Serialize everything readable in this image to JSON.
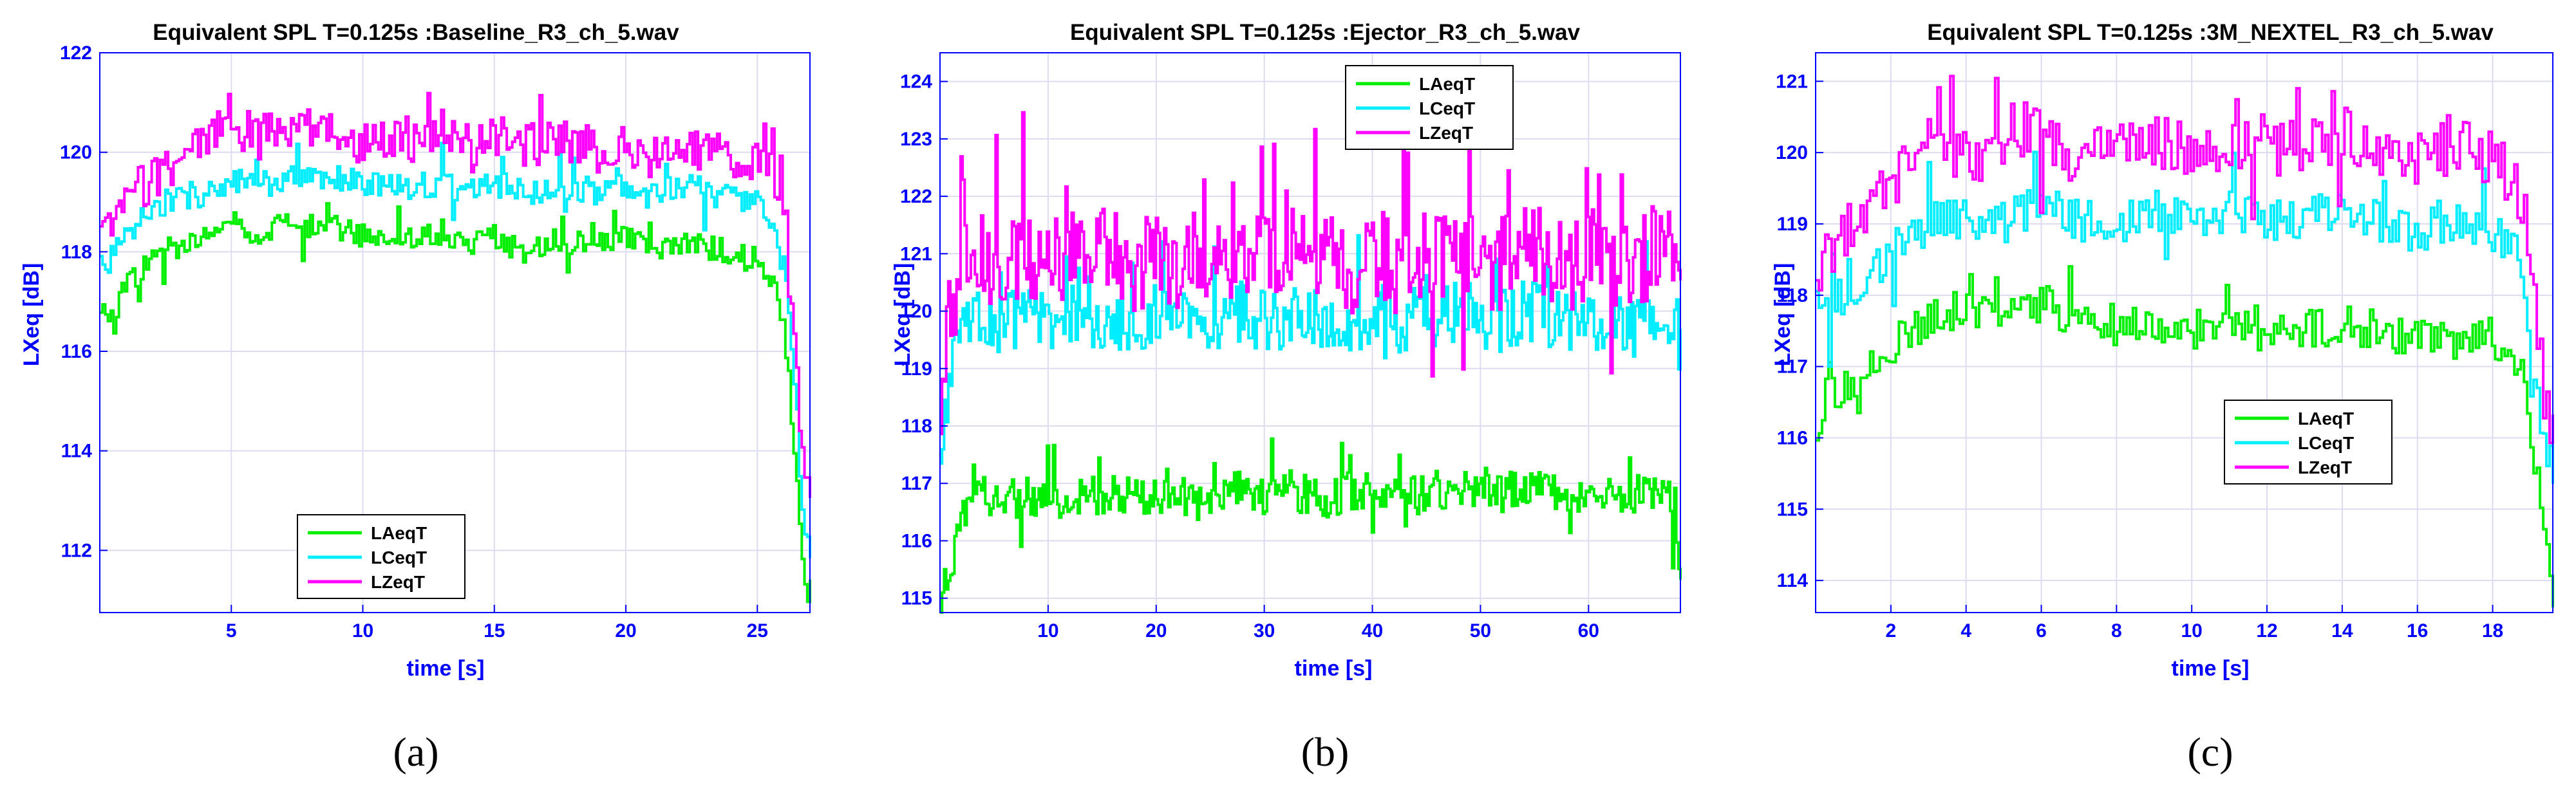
{
  "chart_data": [
    {
      "type": "line",
      "panel": "a",
      "caption": "(a)",
      "title": "Equivalent SPL T=0.125s :Baseline_R3_ch_5.wav",
      "xlabel": "time [s]",
      "ylabel": "LXeq [dB]",
      "xlim": [
        0,
        27
      ],
      "ylim": [
        110.75,
        122
      ],
      "xticks": [
        5,
        10,
        15,
        20,
        25
      ],
      "yticks": [
        112,
        114,
        116,
        118,
        120,
        122
      ],
      "grid": true,
      "legend_position": "bottom-center",
      "series": [
        {
          "name": "LAeqT",
          "color": "#00ee00",
          "x": [
            0,
            0.5,
            1,
            1.5,
            2,
            2.5,
            3,
            4,
            5,
            6,
            7,
            8,
            9,
            10,
            11,
            12,
            13,
            14,
            15,
            16,
            17,
            18,
            19,
            20,
            21,
            22,
            23,
            24,
            25,
            25.5,
            26,
            26.3,
            26.6,
            26.8,
            27
          ],
          "y": [
            116.7,
            116.8,
            117.3,
            117.6,
            117.9,
            118.1,
            118.0,
            118.3,
            118.5,
            118.4,
            118.6,
            118.4,
            118.5,
            118.3,
            118.4,
            118.2,
            118.4,
            118.1,
            118.3,
            118.0,
            118.2,
            118.2,
            118.1,
            118.3,
            118.0,
            118.2,
            118.1,
            118.0,
            117.8,
            117.5,
            116.5,
            114.5,
            112.5,
            111.5,
            110.8
          ]
        },
        {
          "name": "LCeqT",
          "color": "#00eeff",
          "x": [
            0,
            0.5,
            1,
            1.5,
            2,
            2.5,
            3,
            4,
            5,
            6,
            7,
            8,
            9,
            10,
            11,
            12,
            13,
            14,
            15,
            16,
            17,
            18,
            19,
            20,
            21,
            22,
            23,
            24,
            25,
            25.5,
            26,
            26.3,
            26.6,
            26.8,
            27
          ],
          "y": [
            117.8,
            117.9,
            118.3,
            118.6,
            118.8,
            119.0,
            119.1,
            119.2,
            119.4,
            119.3,
            119.5,
            119.4,
            119.5,
            119.3,
            119.4,
            119.3,
            119.4,
            119.2,
            119.4,
            119.2,
            119.3,
            119.3,
            119.2,
            119.3,
            119.1,
            119.3,
            119.2,
            119.1,
            119.0,
            118.6,
            117.8,
            116.2,
            113.5,
            112.3,
            111.8
          ]
        },
        {
          "name": "LZeqT",
          "color": "#ff00ff",
          "x": [
            0,
            0.5,
            1,
            1.5,
            2,
            2.5,
            3,
            4,
            5,
            6,
            7,
            8,
            9,
            10,
            11,
            12,
            13,
            14,
            15,
            16,
            17,
            18,
            19,
            20,
            21,
            22,
            23,
            24,
            25,
            25.5,
            26,
            26.3,
            26.6,
            26.8,
            27
          ],
          "y": [
            118.3,
            118.6,
            119.0,
            119.3,
            119.5,
            119.7,
            119.9,
            120.3,
            120.5,
            120.3,
            120.6,
            120.4,
            120.5,
            120.2,
            120.4,
            120.2,
            120.5,
            120.1,
            120.3,
            120.1,
            120.2,
            120.2,
            120.0,
            120.2,
            119.9,
            120.1,
            120.0,
            119.9,
            119.8,
            119.5,
            118.5,
            116.8,
            114.5,
            113.4,
            113.2
          ]
        }
      ]
    },
    {
      "type": "line",
      "panel": "b",
      "caption": "(b)",
      "title": "Equivalent SPL T=0.125s :Ejector_R3_ch_5.wav",
      "xlabel": "time [s]",
      "ylabel": "LXeq [dB]",
      "xlim": [
        0,
        68.5
      ],
      "ylim": [
        114.75,
        124.5
      ],
      "xticks": [
        10,
        20,
        30,
        40,
        50,
        60
      ],
      "yticks": [
        115,
        116,
        117,
        118,
        119,
        120,
        121,
        122,
        123,
        124
      ],
      "grid": true,
      "legend_position": "top-center",
      "series": [
        {
          "name": "LAeqT",
          "color": "#00ee00",
          "x": [
            0,
            0.5,
            1,
            1.5,
            2,
            3,
            4,
            6,
            8,
            10,
            12,
            14,
            16,
            18,
            20,
            22,
            24,
            26,
            28,
            30,
            32,
            34,
            36,
            38,
            40,
            42,
            44,
            46,
            48,
            50,
            52,
            54,
            56,
            58,
            60,
            62,
            64,
            66,
            67.5,
            68.3
          ],
          "y": [
            114.8,
            115.3,
            115.6,
            116.0,
            116.4,
            116.7,
            116.8,
            116.7,
            116.8,
            116.7,
            116.8,
            116.8,
            116.7,
            116.8,
            116.7,
            116.8,
            116.7,
            116.9,
            116.8,
            116.7,
            116.9,
            116.8,
            116.7,
            116.9,
            116.8,
            116.9,
            116.8,
            116.9,
            116.8,
            117.0,
            116.8,
            117.0,
            116.9,
            116.8,
            116.9,
            116.9,
            116.8,
            116.9,
            116.8,
            115.6
          ]
        },
        {
          "name": "LCeqT",
          "color": "#00eeff",
          "x": [
            0,
            0.5,
            1,
            1.5,
            2,
            3,
            4,
            6,
            8,
            10,
            12,
            14,
            16,
            18,
            20,
            22,
            24,
            26,
            28,
            30,
            32,
            34,
            36,
            38,
            40,
            42,
            44,
            46,
            48,
            50,
            52,
            54,
            56,
            58,
            60,
            62,
            64,
            66,
            67.5,
            68.3
          ],
          "y": [
            117.8,
            118.5,
            119.0,
            119.4,
            119.6,
            119.8,
            119.9,
            119.8,
            120.0,
            119.7,
            120.0,
            119.8,
            119.9,
            119.7,
            120.0,
            119.8,
            119.9,
            119.7,
            120.0,
            119.8,
            119.9,
            119.8,
            119.9,
            119.7,
            120.0,
            119.8,
            119.9,
            119.8,
            120.0,
            119.9,
            119.8,
            120.0,
            119.9,
            119.8,
            119.9,
            119.8,
            119.7,
            119.9,
            119.8,
            119.9
          ]
        },
        {
          "name": "LZeqT",
          "color": "#ff00ff",
          "x": [
            0,
            0.5,
            1,
            1.5,
            2,
            3,
            4,
            6,
            8,
            10,
            12,
            14,
            16,
            18,
            20,
            22,
            24,
            26,
            28,
            30,
            32,
            34,
            36,
            38,
            40,
            42,
            44,
            46,
            48,
            50,
            52,
            54,
            56,
            58,
            60,
            62,
            64,
            66,
            67.5,
            68.3
          ],
          "y": [
            118.5,
            119.4,
            120.0,
            120.4,
            120.6,
            120.8,
            121.0,
            120.8,
            121.1,
            120.7,
            121.1,
            120.9,
            121.0,
            120.7,
            121.0,
            120.8,
            121.0,
            120.7,
            121.1,
            120.8,
            121.0,
            120.8,
            121.0,
            120.7,
            121.1,
            120.8,
            121.0,
            120.8,
            121.1,
            120.9,
            120.8,
            121.1,
            120.9,
            120.8,
            121.0,
            120.8,
            120.7,
            121.0,
            120.8,
            120.8
          ]
        }
      ]
    },
    {
      "type": "line",
      "panel": "c",
      "caption": "(c)",
      "title": "Equivalent SPL T=0.125s :3M_NEXTEL_R3_ch_5.wav",
      "xlabel": "time [s]",
      "ylabel": "LXeq [dB]",
      "xlim": [
        0,
        19.6
      ],
      "ylim": [
        113.55,
        121.4
      ],
      "xticks": [
        2,
        4,
        6,
        8,
        10,
        12,
        14,
        16,
        18
      ],
      "yticks": [
        114,
        115,
        116,
        117,
        118,
        119,
        120,
        121
      ],
      "grid": true,
      "legend_position": "bottom-center",
      "series": [
        {
          "name": "LAeqT",
          "color": "#00ee00",
          "x": [
            0,
            0.3,
            0.6,
            1,
            1.5,
            2,
            2.5,
            3,
            4,
            5,
            6,
            7,
            8,
            9,
            10,
            11,
            12,
            13,
            14,
            15,
            16,
            17,
            18,
            18.5,
            18.8,
            19,
            19.2,
            19.4,
            19.6
          ],
          "y": [
            116.0,
            116.5,
            116.7,
            116.8,
            117.0,
            117.3,
            117.5,
            117.7,
            117.8,
            117.7,
            117.9,
            117.6,
            117.5,
            117.6,
            117.5,
            117.6,
            117.4,
            117.5,
            117.6,
            117.5,
            117.4,
            117.5,
            117.4,
            117.2,
            116.8,
            116.0,
            115.2,
            114.4,
            113.6
          ]
        },
        {
          "name": "LCeqT",
          "color": "#00eeff",
          "x": [
            0,
            0.3,
            0.6,
            1,
            1.5,
            2,
            2.5,
            3,
            4,
            5,
            6,
            7,
            8,
            9,
            10,
            11,
            12,
            13,
            14,
            15,
            16,
            17,
            18,
            18.5,
            18.8,
            19,
            19.2,
            19.4,
            19.6
          ],
          "y": [
            117.5,
            117.8,
            118.0,
            118.1,
            118.3,
            118.7,
            118.9,
            119.0,
            119.1,
            119.0,
            119.3,
            119.0,
            119.1,
            119.2,
            119.0,
            119.2,
            119.0,
            119.1,
            119.2,
            119.0,
            118.9,
            119.0,
            118.9,
            118.7,
            118.3,
            117.4,
            116.5,
            115.6,
            115.2
          ]
        },
        {
          "name": "LZeqT",
          "color": "#ff00ff",
          "x": [
            0,
            0.3,
            0.6,
            1,
            1.5,
            2,
            2.5,
            3,
            4,
            5,
            6,
            7,
            8,
            9,
            10,
            11,
            12,
            13,
            14,
            15,
            16,
            17,
            18,
            18.5,
            18.8,
            19,
            19.2,
            19.4,
            19.6
          ],
          "y": [
            118.2,
            118.6,
            118.9,
            119.0,
            119.3,
            119.6,
            119.8,
            119.9,
            120.0,
            119.9,
            120.3,
            119.9,
            120.1,
            120.2,
            120.0,
            120.2,
            120.0,
            120.1,
            120.3,
            120.0,
            119.9,
            120.1,
            119.9,
            119.6,
            119.2,
            118.4,
            117.5,
            116.6,
            116.0
          ]
        }
      ]
    }
  ]
}
